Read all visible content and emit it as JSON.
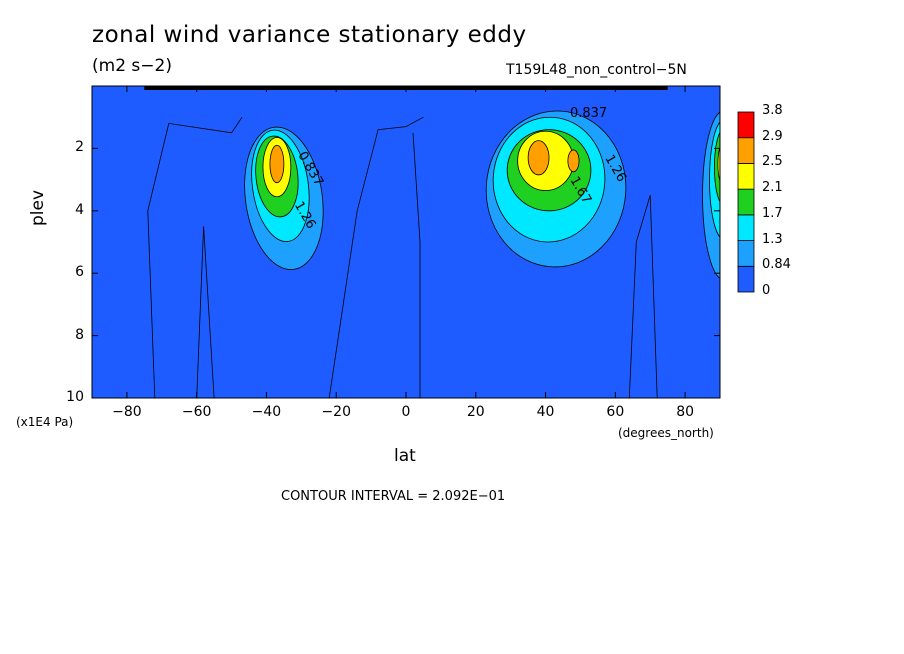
{
  "title": "zonal wind variance stationary eddy",
  "units": "(m2 s−2)",
  "run_label": "T159L48_non_control−5N",
  "footer": "CONTOUR INTERVAL = 2.092E−01",
  "chart_data": {
    "type": "heatmap",
    "title": "zonal wind variance stationary eddy",
    "xlabel": "lat",
    "x_units": "(degrees_north)",
    "ylabel": "plev",
    "y_units": "(x1E4 Pa)",
    "xlim": [
      -90,
      90
    ],
    "ylim": [
      10,
      0
    ],
    "x_ticks": [
      "−80",
      "−60",
      "−40",
      "−20",
      "0",
      "20",
      "40",
      "60",
      "80"
    ],
    "y_ticks": [
      "2",
      "4",
      "6",
      "8",
      "10"
    ],
    "colorbar": {
      "levels": [
        "0",
        "0.84",
        "1.3",
        "1.7",
        "2.1",
        "2.5",
        "2.9",
        "3.8"
      ],
      "colors": [
        "#1e5cff",
        "#1ea0ff",
        "#00e8ff",
        "#20d020",
        "#ffff00",
        "#ffa000",
        "#ff0000"
      ]
    },
    "contour_labels": [
      "0.837",
      "0.837",
      "1.26",
      "1.67",
      "1.26"
    ],
    "features": [
      {
        "name": "southern jet maximum",
        "lat": -37,
        "plev": 2.5,
        "value": 2.9
      },
      {
        "name": "northern jet maximum",
        "lat": 38,
        "plev": 2.4,
        "value": 2.9
      },
      {
        "name": "northern secondary maximum",
        "lat": 48,
        "plev": 2.4,
        "value": 2.5
      },
      {
        "name": "polar maximum",
        "lat": 89,
        "plev": 2.5,
        "value": 2.5
      }
    ],
    "grid": false,
    "legend": "colorbar-right"
  }
}
